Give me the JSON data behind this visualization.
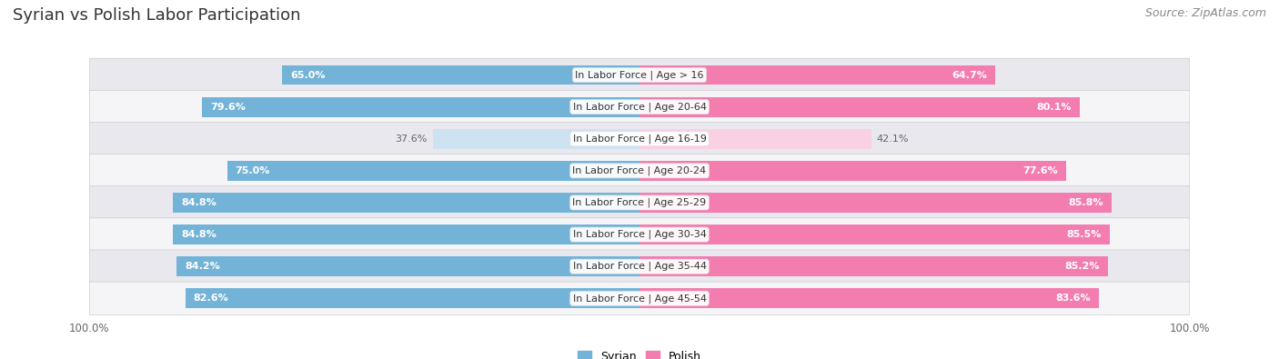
{
  "title": "Syrian vs Polish Labor Participation",
  "source": "Source: ZipAtlas.com",
  "categories": [
    "In Labor Force | Age > 16",
    "In Labor Force | Age 20-64",
    "In Labor Force | Age 16-19",
    "In Labor Force | Age 20-24",
    "In Labor Force | Age 25-29",
    "In Labor Force | Age 30-34",
    "In Labor Force | Age 35-44",
    "In Labor Force | Age 45-54"
  ],
  "syrian_values": [
    65.0,
    79.6,
    37.6,
    75.0,
    84.8,
    84.8,
    84.2,
    82.6
  ],
  "polish_values": [
    64.7,
    80.1,
    42.1,
    77.6,
    85.8,
    85.5,
    85.2,
    83.6
  ],
  "syrian_color": "#74b3d8",
  "polish_color": "#f47db0",
  "syrian_color_light": "#cde3f2",
  "polish_color_light": "#fad0e4",
  "row_bg_even": "#e8e8ee",
  "row_bg_odd": "#f5f5f8",
  "bar_height": 0.62,
  "background_color": "#ffffff",
  "title_fontsize": 13,
  "source_fontsize": 9,
  "cat_label_fontsize": 8,
  "value_fontsize": 8,
  "legend_fontsize": 9,
  "title_color": "#333333",
  "source_color": "#888888",
  "value_color_white": "#ffffff",
  "value_color_dark": "#666666"
}
